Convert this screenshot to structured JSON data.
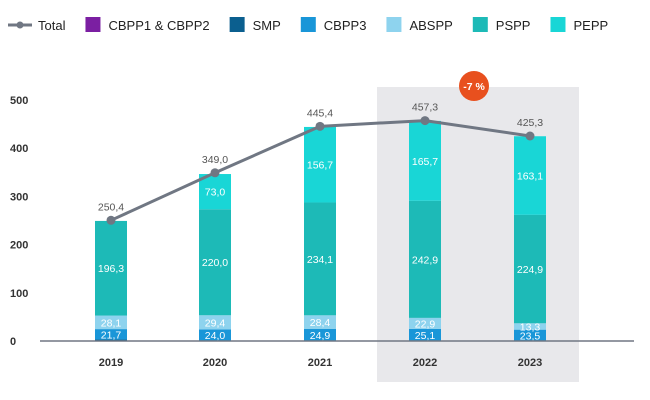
{
  "chart_data": {
    "type": "bar",
    "stacked": true,
    "categories": [
      "2019",
      "2020",
      "2021",
      "2022",
      "2023"
    ],
    "ylim": [
      0,
      500
    ],
    "yticks": [
      0,
      100,
      200,
      300,
      400,
      500
    ],
    "legend": [
      {
        "name": "Total",
        "color": "#707783",
        "kind": "line"
      },
      {
        "name": "CBPP1 & CBPP2",
        "color": "#7b1fa2",
        "kind": "box"
      },
      {
        "name": "SMP",
        "color": "#0b5f8f",
        "kind": "box"
      },
      {
        "name": "CBPP3",
        "color": "#1996d8",
        "kind": "box"
      },
      {
        "name": "ABSPP",
        "color": "#8ed3ee",
        "kind": "box"
      },
      {
        "name": "PSPP",
        "color": "#1dbab7",
        "kind": "box"
      },
      {
        "name": "PEPP",
        "color": "#19d6d6",
        "kind": "box"
      }
    ],
    "series": [
      {
        "name": "SMP",
        "color": "#0b5f8f",
        "values": [
          3,
          0,
          0,
          0,
          0
        ],
        "labels": [
          "",
          "",
          "",
          "",
          ""
        ]
      },
      {
        "name": "CBPP3",
        "color": "#1996d8",
        "values": [
          21.7,
          24.0,
          24.9,
          25.1,
          23.5
        ],
        "labels": [
          "21,7",
          "24,0",
          "24,9",
          "25,1",
          "23,5"
        ]
      },
      {
        "name": "ABSPP",
        "color": "#8ed3ee",
        "values": [
          28.1,
          29.4,
          28.4,
          22.9,
          13.3
        ],
        "labels": [
          "28,1",
          "29,4",
          "28,4",
          "22,9",
          "13,3"
        ]
      },
      {
        "name": "PSPP",
        "color": "#1dbab7",
        "values": [
          196.3,
          220.0,
          234.1,
          242.9,
          224.9
        ],
        "labels": [
          "196,3",
          "220,0",
          "234,1",
          "242,9",
          "224,9"
        ]
      },
      {
        "name": "PEPP",
        "color": "#19d6d6",
        "values": [
          0,
          73.0,
          156.7,
          165.7,
          163.1
        ],
        "labels": [
          "",
          "73,0",
          "156,7",
          "165,7",
          "163,1"
        ]
      }
    ],
    "total": {
      "name": "Total",
      "values": [
        250.4,
        349.0,
        445.4,
        457.3,
        425.3
      ],
      "labels": [
        "250,4",
        "349,0",
        "445,4",
        "457,3",
        "425,3"
      ]
    },
    "highlight_categories": [
      "2022",
      "2023"
    ],
    "highlight_color": "#e8e8eb",
    "annotation": {
      "text": "-7 %",
      "color": "#e8501e"
    },
    "axis_color": "#707783",
    "title": "",
    "xlabel": "",
    "ylabel": ""
  }
}
